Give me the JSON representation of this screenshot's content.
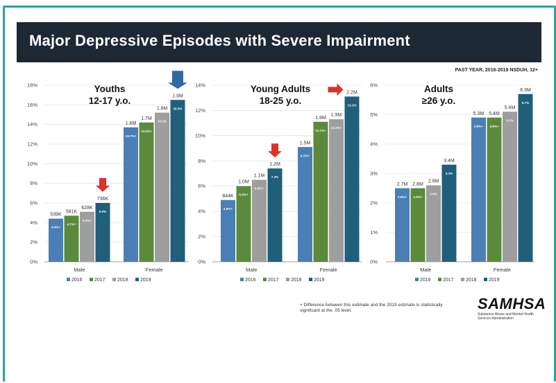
{
  "title": "Major Depressive Episodes with Severe Impairment",
  "subtitle": "PAST YEAR, 2016-2019 NSDUH, 12+",
  "footnote": "+ Difference between this estimate and the 2019 estimate is statistically significant at the .05 level.",
  "logo": {
    "name": "SAMHSA",
    "tagline": "Substance Abuse and Mental Health Services Administration"
  },
  "colors": {
    "2016": "#4a7fb5",
    "2017": "#5b8a3c",
    "2018": "#9e9e9e",
    "2019": "#1f5f7a",
    "arrow_red": "#d9342b",
    "arrow_blue": "#2e6aa3"
  },
  "chart_data": [
    {
      "type": "bar",
      "title": "Youths 12-17 y.o.",
      "title_lines": [
        "Youths",
        "12-17 y.o."
      ],
      "categories": [
        "Male",
        "Female"
      ],
      "legend": [
        "2016",
        "2017",
        "2018",
        "2019"
      ],
      "ylim": [
        0,
        18
      ],
      "yticks": [
        "0%",
        "2%",
        "4%",
        "6%",
        "8%",
        "10%",
        "12%",
        "14%",
        "16%",
        "18%"
      ],
      "series": [
        {
          "name": "2016",
          "values": [
            4.4,
            13.7
          ],
          "inner_labels": [
            "4.4%+",
            "13.7%+"
          ],
          "top_labels": [
            "539K",
            "1.6M"
          ]
        },
        {
          "name": "2017",
          "values": [
            4.7,
            14.2
          ],
          "inner_labels": [
            "4.7%+",
            "14.2%+"
          ],
          "top_labels": [
            "581K",
            "1.7M"
          ]
        },
        {
          "name": "2018",
          "values": [
            5.1,
            15.2
          ],
          "inner_labels": [
            "5.1%+",
            "15.2%"
          ],
          "top_labels": [
            "628K",
            "1.8M"
          ]
        },
        {
          "name": "2019",
          "values": [
            6.0,
            16.5
          ],
          "inner_labels": [
            "6.0%",
            "16.5%"
          ],
          "top_labels": [
            "736K",
            "1.9M"
          ]
        }
      ],
      "arrows": [
        {
          "category": 0,
          "color": "red"
        },
        {
          "category": 1,
          "color": "blue"
        }
      ]
    },
    {
      "type": "bar",
      "title": "Young Adults 18-25 y.o.",
      "title_lines": [
        "Young Adults",
        "18-25 y.o."
      ],
      "categories": [
        "Male",
        "Female"
      ],
      "legend": [
        "2016",
        "2017",
        "2018",
        "2019"
      ],
      "ylim": [
        0,
        14
      ],
      "yticks": [
        "0%",
        "2%",
        "4%",
        "6%",
        "8%",
        "10%",
        "12%",
        "14%"
      ],
      "series": [
        {
          "name": "2016",
          "values": [
            4.9,
            9.1
          ],
          "inner_labels": [
            "4.9%+",
            "9.1%+"
          ],
          "top_labels": [
            "844K",
            "1.5M"
          ]
        },
        {
          "name": "2017",
          "values": [
            6.0,
            11.1
          ],
          "inner_labels": [
            "6.0%+",
            "11.1%+"
          ],
          "top_labels": [
            "1.0M",
            "1.9M"
          ]
        },
        {
          "name": "2018",
          "values": [
            6.5,
            11.3
          ],
          "inner_labels": [
            "6.5%+",
            "11.3%+"
          ],
          "top_labels": [
            "1.1M",
            "1.9M"
          ]
        },
        {
          "name": "2019",
          "values": [
            7.4,
            13.1
          ],
          "inner_labels": [
            "7.4%",
            "13.1%"
          ],
          "top_labels": [
            "1.2M",
            "2.2M"
          ]
        }
      ],
      "arrows": [
        {
          "category": 0,
          "color": "red"
        },
        {
          "category": 1,
          "color": "red_side"
        }
      ]
    },
    {
      "type": "bar",
      "title": "Adults ≥26 y.o.",
      "title_lines": [
        "Adults",
        "≥26 y.o."
      ],
      "categories": [
        "Male",
        "Female"
      ],
      "legend": [
        "2016",
        "2017",
        "2018",
        "2019"
      ],
      "ylim": [
        0,
        6
      ],
      "yticks": [
        "0%",
        "1%",
        "2%",
        "3%",
        "4%",
        "5%",
        "6%"
      ],
      "series": [
        {
          "name": "2016",
          "values": [
            2.5,
            4.9
          ],
          "inner_labels": [
            "2.5%+",
            "4.9%+"
          ],
          "top_labels": [
            "2.7M",
            "5.3M"
          ]
        },
        {
          "name": "2017",
          "values": [
            2.5,
            4.9
          ],
          "inner_labels": [
            "2.5%+",
            "4.9%+"
          ],
          "top_labels": [
            "2.8M",
            "5.4M"
          ]
        },
        {
          "name": "2018",
          "values": [
            2.6,
            5.1
          ],
          "inner_labels": [
            "2.6%",
            "5.1%"
          ],
          "top_labels": [
            "2.9M",
            "5.6M"
          ]
        },
        {
          "name": "2019",
          "values": [
            3.3,
            5.7
          ],
          "inner_labels": [
            "3.3%",
            "5.7%"
          ],
          "top_labels": [
            "3.4M",
            "6.3M"
          ]
        }
      ],
      "arrows": []
    }
  ]
}
